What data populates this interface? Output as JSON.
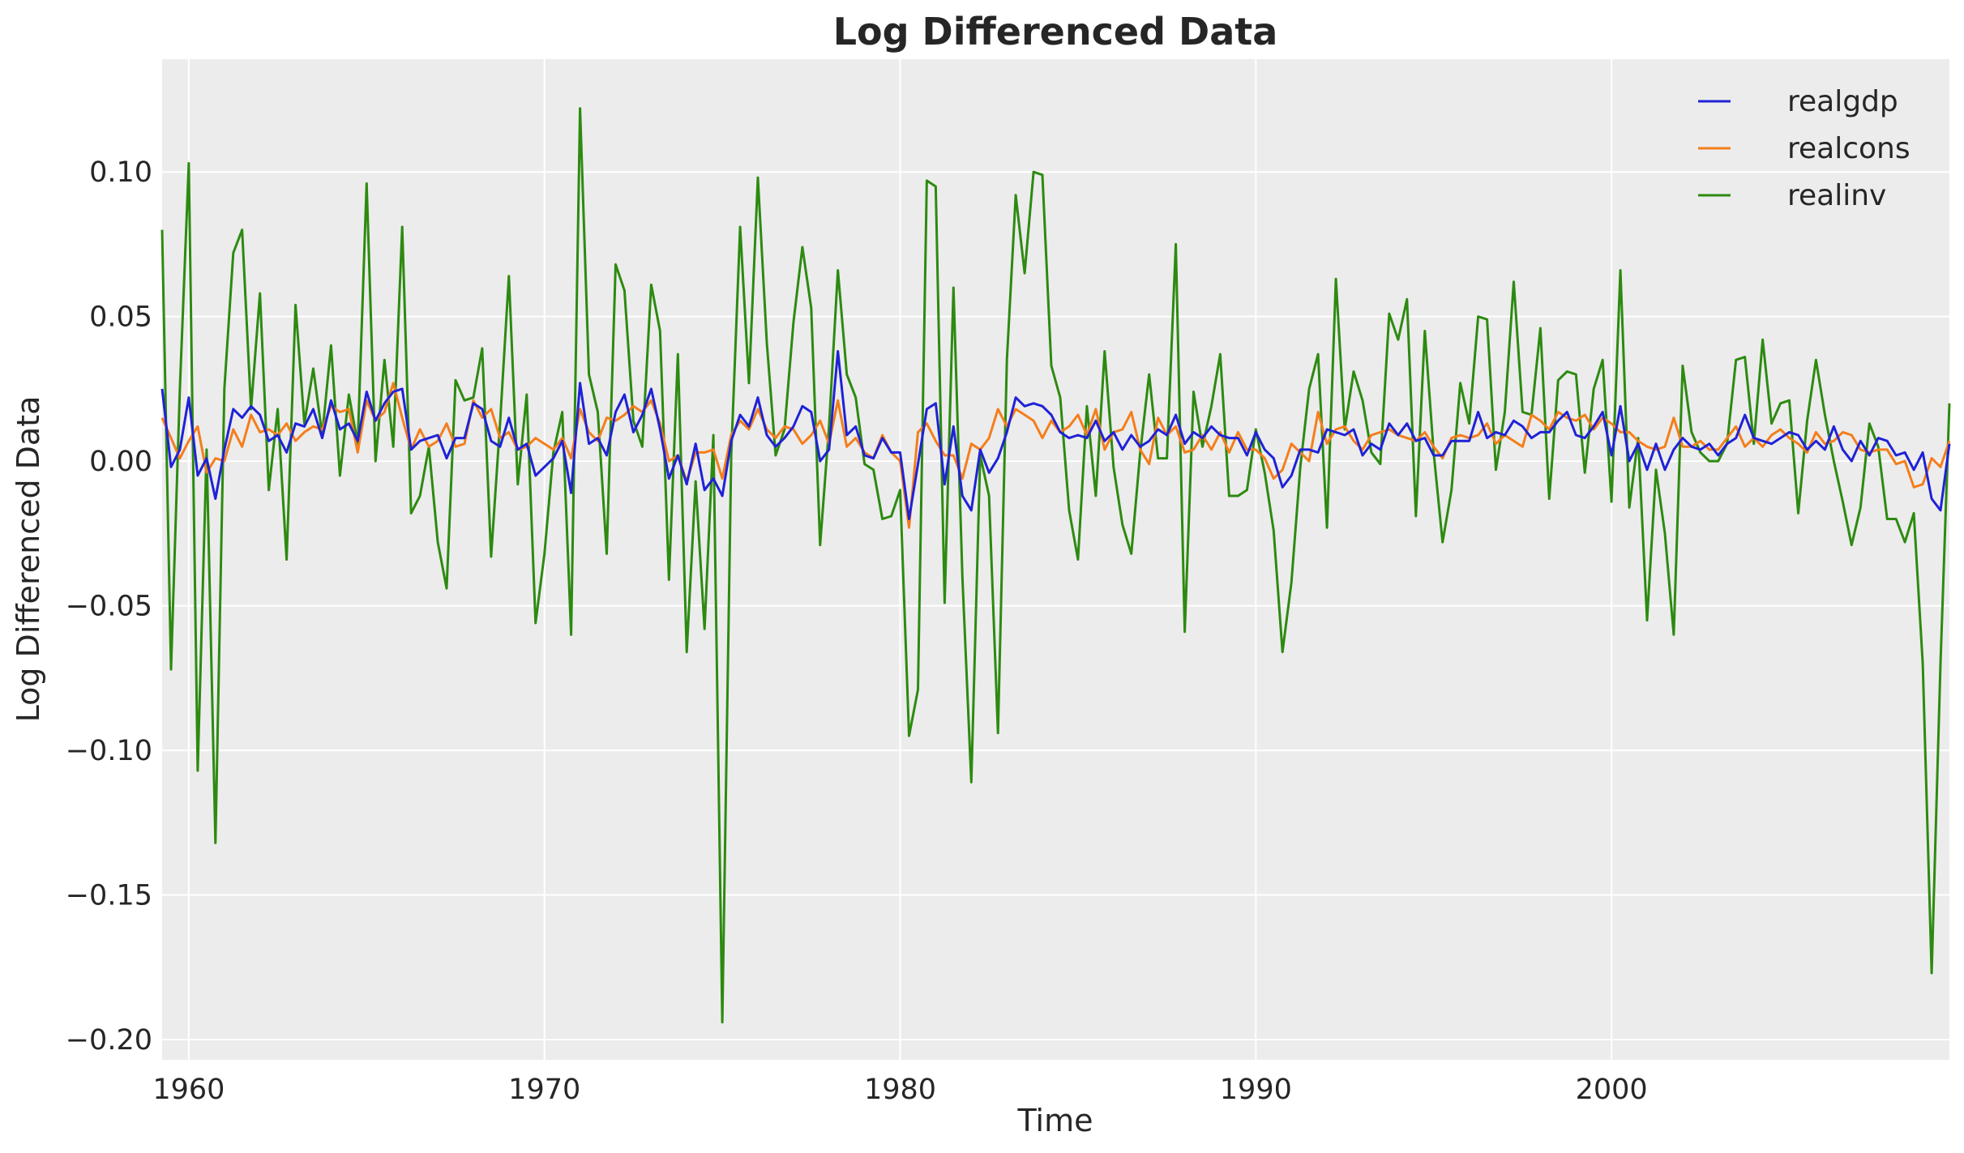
{
  "chart_data": {
    "type": "line",
    "title": "Log Differenced Data",
    "xlabel": "Time",
    "ylabel": "Log Differenced Data",
    "xlim": [
      1959.25,
      2009.5
    ],
    "ylim": [
      -0.207,
      0.139
    ],
    "x_ticks": [
      1960,
      1970,
      1980,
      1990,
      2000
    ],
    "x_tick_labels": [
      "1960",
      "1970",
      "1980",
      "1990",
      "2000"
    ],
    "y_ticks": [
      0.1,
      0.05,
      0.0,
      -0.05,
      -0.1,
      -0.15,
      -0.2
    ],
    "y_tick_labels": [
      "0.10",
      "0.05",
      "0.00",
      "−0.05",
      "−0.10",
      "−0.15",
      "−0.20"
    ],
    "grid": true,
    "background": "#ececec",
    "legend_position": "top-right",
    "x_start": 1959.25,
    "x_step": 0.25,
    "series": [
      {
        "name": "realgdp",
        "color": "#1f22d6",
        "values": [
          0.025,
          -0.002,
          0.004,
          0.022,
          -0.005,
          0.001,
          -0.013,
          0.004,
          0.018,
          0.015,
          0.019,
          0.016,
          0.007,
          0.009,
          0.003,
          0.013,
          0.012,
          0.018,
          0.008,
          0.021,
          0.011,
          0.013,
          0.007,
          0.024,
          0.014,
          0.02,
          0.024,
          0.025,
          0.004,
          0.007,
          0.008,
          0.009,
          0.001,
          0.008,
          0.008,
          0.02,
          0.018,
          0.007,
          0.005,
          0.015,
          0.004,
          0.006,
          -0.005,
          -0.002,
          0.001,
          0.007,
          -0.011,
          0.027,
          0.006,
          0.008,
          0.002,
          0.017,
          0.023,
          0.01,
          0.016,
          0.025,
          0.011,
          -0.006,
          0.002,
          -0.008,
          0.006,
          -0.01,
          -0.006,
          -0.012,
          0.007,
          0.016,
          0.012,
          0.022,
          0.009,
          0.005,
          0.008,
          0.012,
          0.019,
          0.017,
          0.0,
          0.004,
          0.038,
          0.009,
          0.012,
          0.002,
          0.001,
          0.008,
          0.003,
          0.003,
          -0.02,
          -0.001,
          0.018,
          0.02,
          -0.008,
          0.012,
          -0.012,
          -0.017,
          0.004,
          -0.004,
          0.001,
          0.01,
          0.022,
          0.019,
          0.02,
          0.019,
          0.016,
          0.01,
          0.008,
          0.009,
          0.008,
          0.014,
          0.007,
          0.01,
          0.004,
          0.009,
          0.005,
          0.007,
          0.011,
          0.009,
          0.016,
          0.006,
          0.01,
          0.008,
          0.012,
          0.009,
          0.008,
          0.008,
          0.002,
          0.01,
          0.004,
          0.001,
          -0.009,
          -0.005,
          0.004,
          0.004,
          0.003,
          0.011,
          0.01,
          0.009,
          0.011,
          0.002,
          0.006,
          0.004,
          0.013,
          0.009,
          0.013,
          0.007,
          0.008,
          0.002,
          0.002,
          0.007,
          0.007,
          0.007,
          0.017,
          0.008,
          0.01,
          0.009,
          0.014,
          0.012,
          0.008,
          0.01,
          0.01,
          0.014,
          0.017,
          0.009,
          0.008,
          0.012,
          0.017,
          0.002,
          0.019,
          0.0,
          0.006,
          -0.003,
          0.006,
          -0.003,
          0.004,
          0.008,
          0.005,
          0.004,
          0.006,
          0.002,
          0.006,
          0.008,
          0.016,
          0.008,
          0.007,
          0.006,
          0.008,
          0.01,
          0.009,
          0.004,
          0.007,
          0.004,
          0.012,
          0.004,
          0.0,
          0.007,
          0.002,
          0.008,
          0.007,
          0.002,
          0.003,
          -0.003,
          0.003,
          -0.013,
          -0.017,
          0.006
        ]
      },
      {
        "name": "realcons",
        "color": "#f47e1b",
        "values": [
          0.015,
          0.008,
          0.001,
          0.007,
          0.012,
          -0.004,
          0.001,
          0.0,
          0.011,
          0.005,
          0.016,
          0.01,
          0.011,
          0.009,
          0.013,
          0.007,
          0.01,
          0.012,
          0.011,
          0.019,
          0.017,
          0.018,
          0.003,
          0.021,
          0.014,
          0.017,
          0.027,
          0.015,
          0.004,
          0.011,
          0.005,
          0.007,
          0.013,
          0.005,
          0.006,
          0.021,
          0.015,
          0.018,
          0.008,
          0.01,
          0.004,
          0.005,
          0.008,
          0.006,
          0.004,
          0.008,
          0.001,
          0.018,
          0.01,
          0.007,
          0.015,
          0.014,
          0.016,
          0.019,
          0.017,
          0.021,
          0.013,
          0.0,
          0.002,
          -0.007,
          0.003,
          0.003,
          0.004,
          -0.006,
          0.009,
          0.014,
          0.011,
          0.018,
          0.011,
          0.008,
          0.012,
          0.011,
          0.006,
          0.009,
          0.014,
          0.006,
          0.021,
          0.005,
          0.008,
          0.003,
          0.001,
          0.009,
          0.003,
          0.0,
          -0.023,
          0.01,
          0.013,
          0.007,
          0.002,
          0.002,
          -0.006,
          0.006,
          0.004,
          0.008,
          0.018,
          0.012,
          0.018,
          0.016,
          0.014,
          0.008,
          0.014,
          0.01,
          0.012,
          0.016,
          0.009,
          0.018,
          0.004,
          0.01,
          0.011,
          0.017,
          0.004,
          -0.001,
          0.015,
          0.009,
          0.012,
          0.003,
          0.004,
          0.009,
          0.004,
          0.01,
          0.003,
          0.01,
          0.004,
          0.004,
          0.001,
          -0.006,
          -0.003,
          0.006,
          0.003,
          0.0,
          0.017,
          0.006,
          0.011,
          0.012,
          0.007,
          0.004,
          0.009,
          0.01,
          0.011,
          0.009,
          0.008,
          0.007,
          0.01,
          0.005,
          0.001,
          0.008,
          0.009,
          0.008,
          0.009,
          0.013,
          0.006,
          0.009,
          0.007,
          0.005,
          0.016,
          0.014,
          0.011,
          0.017,
          0.015,
          0.014,
          0.016,
          0.011,
          0.015,
          0.013,
          0.01,
          0.01,
          0.007,
          0.005,
          0.004,
          0.005,
          0.015,
          0.005,
          0.005,
          0.007,
          0.004,
          0.004,
          0.008,
          0.012,
          0.005,
          0.008,
          0.005,
          0.009,
          0.011,
          0.008,
          0.006,
          0.003,
          0.01,
          0.006,
          0.007,
          0.01,
          0.009,
          0.004,
          0.003,
          0.004,
          0.004,
          -0.001,
          0.0,
          -0.009,
          -0.008,
          0.001,
          -0.002,
          0.007
        ]
      },
      {
        "name": "realinv",
        "color": "#2d8a10",
        "values": [
          0.08,
          -0.072,
          0.025,
          0.103,
          -0.107,
          0.004,
          -0.132,
          0.025,
          0.072,
          0.08,
          0.018,
          0.058,
          -0.01,
          0.018,
          -0.034,
          0.054,
          0.013,
          0.032,
          0.009,
          0.04,
          -0.005,
          0.023,
          0.006,
          0.096,
          0.0,
          0.035,
          0.005,
          0.081,
          -0.018,
          -0.012,
          0.005,
          -0.028,
          -0.044,
          0.028,
          0.021,
          0.022,
          0.039,
          -0.033,
          0.013,
          0.064,
          -0.008,
          0.023,
          -0.056,
          -0.032,
          0.003,
          0.017,
          -0.06,
          0.122,
          0.03,
          0.017,
          -0.032,
          0.068,
          0.059,
          0.014,
          0.005,
          0.061,
          0.045,
          -0.041,
          0.037,
          -0.066,
          -0.007,
          -0.058,
          0.009,
          -0.194,
          0.002,
          0.081,
          0.027,
          0.098,
          0.041,
          0.002,
          0.011,
          0.048,
          0.074,
          0.053,
          -0.029,
          0.012,
          0.066,
          0.03,
          0.022,
          -0.001,
          -0.003,
          -0.02,
          -0.019,
          -0.01,
          -0.095,
          -0.079,
          0.097,
          0.095,
          -0.049,
          0.06,
          -0.04,
          -0.111,
          0.002,
          -0.012,
          -0.094,
          0.035,
          0.092,
          0.065,
          0.1,
          0.099,
          0.033,
          0.022,
          -0.017,
          -0.034,
          0.019,
          -0.012,
          0.038,
          -0.002,
          -0.022,
          -0.032,
          0.003,
          0.03,
          0.001,
          0.001,
          0.075,
          -0.059,
          0.024,
          0.005,
          0.019,
          0.037,
          -0.012,
          -0.012,
          -0.01,
          0.011,
          -0.004,
          -0.024,
          -0.066,
          -0.042,
          -0.002,
          0.025,
          0.037,
          -0.023,
          0.063,
          0.011,
          0.031,
          0.021,
          0.003,
          -0.001,
          0.051,
          0.042,
          0.056,
          -0.019,
          0.045,
          0.003,
          -0.028,
          -0.01,
          0.027,
          0.013,
          0.05,
          0.049,
          -0.003,
          0.017,
          0.062,
          0.017,
          0.016,
          0.046,
          -0.013,
          0.028,
          0.031,
          0.03,
          -0.004,
          0.025,
          0.035,
          -0.014,
          0.066,
          -0.016,
          0.008,
          -0.055,
          -0.003,
          -0.025,
          -0.06,
          0.033,
          0.01,
          0.003,
          0.0,
          0.0,
          0.006,
          0.035,
          0.036,
          0.006,
          0.042,
          0.013,
          0.02,
          0.021,
          -0.018,
          0.014,
          0.035,
          0.016,
          0.0,
          -0.014,
          -0.029,
          -0.016,
          0.013,
          0.005,
          -0.02,
          -0.02,
          -0.028,
          -0.018,
          -0.07,
          -0.177,
          -0.07,
          0.02
        ]
      }
    ]
  }
}
